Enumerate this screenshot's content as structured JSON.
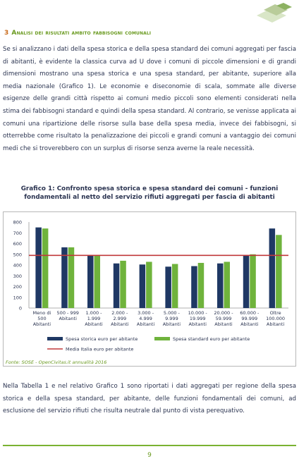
{
  "section": {
    "number": "3",
    "title": "Analisi dei risultati ambito fabbisogni comunali"
  },
  "paragraph1": "Se si analizzano i dati della spesa storica e della spesa standard dei comuni aggregati per fascia di abitanti, è evidente la classica curva ad U dove i comuni di piccole dimensioni e di grandi dimensioni mostrano una spesa storica e una spesa standard, per abitante, superiore alla media nazionale (Grafico 1). Le economie e diseconomie di scala, sommate alle diverse esigenze delle grandi città rispetto ai comuni medio piccoli sono elementi considerati nella stima dei fabbisogni standard e quindi della spesa standard. Al contrario, se venisse applicata ai comuni una ripartizione delle risorse sulla base della spesa media, invece dei fabbisogni, si otterrebbe come risultato la penalizzazione dei piccoli e grandi comuni a vantaggio dei comuni medi che si troverebbero con un surplus di risorse senza averne la reale necessità.",
  "chart_caption": "Grafico 1: Confronto spesa storica e spesa standard dei comuni - funzioni fondamentali al netto del servizio rifiuti aggregati per fascia di abitanti",
  "source": "Fonte: SOSE - OpenCivitas.it annualità 2016",
  "paragraph2": "Nella Tabella 1 e nel relativo Grafico 1 sono riportati i dati aggregati per regione della spesa storica e della spesa standard, per abitante, delle funzioni fondamentali dei comuni, ad esclusione del servizio rifiuti che risulta neutrale dal punto di vista perequativo.",
  "page_number": "9",
  "colors": {
    "storica": "#1f3864",
    "standard": "#6fb33c",
    "media": "#c0393b",
    "accent_green": "#6a9a20",
    "accent_orange": "#c96a1a"
  },
  "chart_data": {
    "type": "bar",
    "categories": [
      [
        "Meno di",
        "500",
        "Abitanti"
      ],
      [
        "500 - 999",
        "Abitanti"
      ],
      [
        "1.000 -",
        "1.999",
        "Abitanti"
      ],
      [
        "2.000 -",
        "2.999",
        "Abitanti"
      ],
      [
        "3.000 -",
        "4.999",
        "Abitanti"
      ],
      [
        "5.000 -",
        "9.999",
        "Abitanti"
      ],
      [
        "10.000 -",
        "19.999",
        "Abitanti"
      ],
      [
        "20.000 -",
        "59.999",
        "Abitanti"
      ],
      [
        "60.000 -",
        "99.999",
        "Abitanti"
      ],
      [
        "Oltre",
        "100.000",
        "Abitanti"
      ]
    ],
    "series": [
      {
        "name": "Spesa storica euro per abitante",
        "values": [
          750,
          565,
          490,
          415,
          405,
          385,
          390,
          415,
          495,
          740
        ]
      },
      {
        "name": "Spesa standard euro per abitante",
        "values": [
          740,
          565,
          490,
          440,
          430,
          410,
          420,
          430,
          500,
          680
        ]
      }
    ],
    "reference_line": {
      "name": "Media Italia euro per abitante",
      "value": 490
    },
    "yticks": [
      "0",
      "100",
      "200",
      "300",
      "400",
      "500",
      "600",
      "700",
      "800"
    ],
    "ylim": [
      0,
      800
    ],
    "grid": false,
    "legend_position": "bottom"
  }
}
